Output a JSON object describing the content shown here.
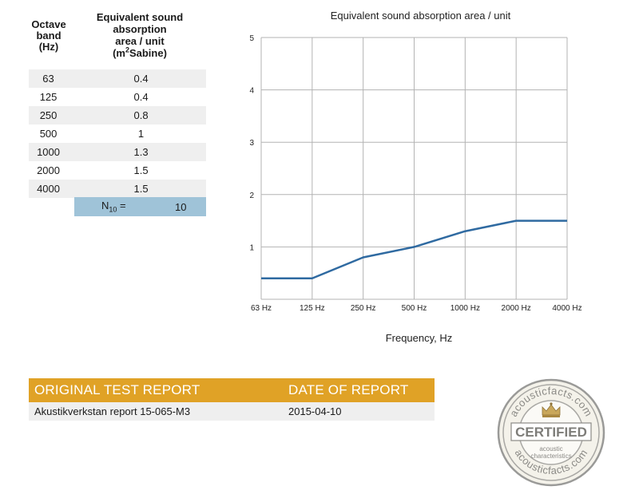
{
  "table": {
    "header_band": "Octave band (Hz)",
    "header_band_lines": [
      "Octave",
      "band",
      "(Hz)"
    ],
    "header_abs_lines": [
      "Equivalent sound",
      "absorption",
      "area / unit"
    ],
    "header_abs_unit_open": "(m",
    "header_abs_unit_sup": "2",
    "header_abs_unit_close": "Sabine)",
    "rows": [
      {
        "band": "63",
        "value": "0.4"
      },
      {
        "band": "125",
        "value": "0.4"
      },
      {
        "band": "250",
        "value": "0.8"
      },
      {
        "band": "500",
        "value": "1"
      },
      {
        "band": "1000",
        "value": "1.3"
      },
      {
        "band": "2000",
        "value": "1.5"
      },
      {
        "band": "4000",
        "value": "1.5"
      }
    ],
    "n10_label_main": "N",
    "n10_label_sub": "10",
    "n10_label_eq": " =",
    "n10_value": "10"
  },
  "chart_data": {
    "type": "line",
    "title": "Equivalent sound absorption area / unit",
    "xlabel": "Frequency, Hz",
    "ylabel": "",
    "categories": [
      "63 Hz",
      "125 Hz",
      "250 Hz",
      "500 Hz",
      "1000 Hz",
      "2000 Hz",
      "4000 Hz"
    ],
    "series": [
      {
        "values": [
          0.4,
          0.4,
          0.8,
          1,
          1.3,
          1.5,
          1.5
        ],
        "color": "#2f6aa1"
      }
    ],
    "ylim": [
      0,
      5
    ],
    "yticks": [
      "1",
      "2",
      "3",
      "4",
      "5"
    ],
    "grid": true,
    "gridColor": "#b3b3b3"
  },
  "report": {
    "header_left": "ORIGINAL TEST REPORT",
    "header_right": "DATE OF REPORT",
    "value_left": "Akustikverkstan report 15-065-M3",
    "value_right": "2015-04-10",
    "accent": "#e0a226"
  },
  "seal": {
    "arc_top": "acousticfacts.com",
    "arc_bottom": "acousticfacts.com",
    "certified": "CERTIFIED",
    "line1": "acoustic",
    "line2": "characteristics",
    "icon": "crown-icon"
  }
}
